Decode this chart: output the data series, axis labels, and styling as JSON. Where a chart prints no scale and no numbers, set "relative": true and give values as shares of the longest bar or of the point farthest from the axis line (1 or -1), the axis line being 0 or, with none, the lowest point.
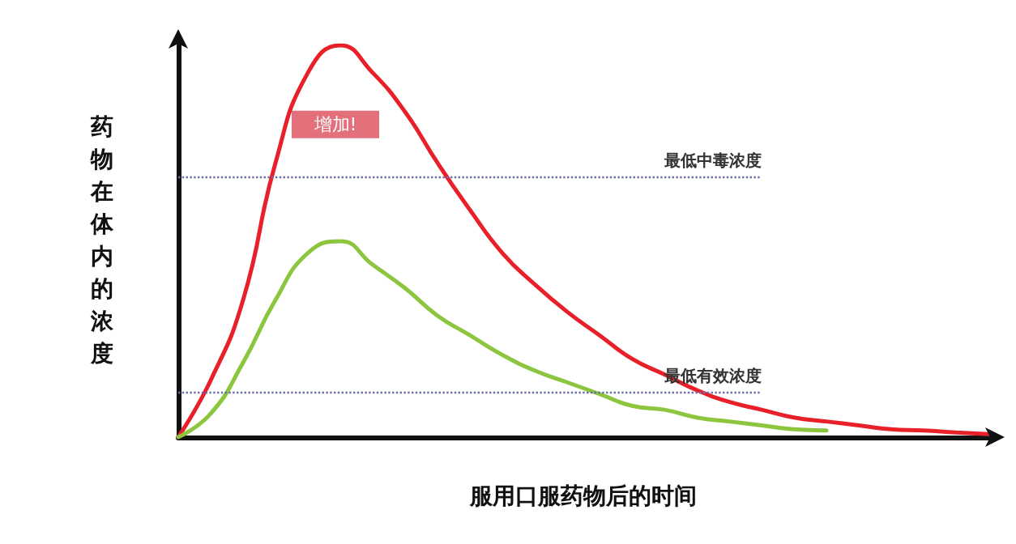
{
  "chart_data": {
    "type": "line",
    "relative": true,
    "xlabel": "服用口服药物后的时间",
    "ylabel": "药物在体内的浓度",
    "categories": [
      null,
      null,
      null,
      null,
      null,
      null,
      null,
      null,
      null,
      null,
      null,
      null,
      null,
      null,
      null,
      null,
      null,
      null,
      null,
      null,
      null,
      null,
      null,
      null,
      null,
      null
    ],
    "series": [
      {
        "color": "#e8202a",
        "values": [
          0,
          0.145,
          0.35,
          0.7,
          0.93,
          1,
          0.93,
          0.83,
          0.7,
          0.58,
          0.47,
          0.39,
          0.32,
          0.26,
          0.2,
          0.16,
          0.12,
          0.09,
          0.07,
          0.05,
          0.04,
          0.03,
          0.02,
          0.017,
          0.012,
          0.008
        ]
      },
      {
        "color": "#8cc63f",
        "values": [
          0,
          0.06,
          0.19,
          0.35,
          0.47,
          0.5,
          0.44,
          0.38,
          0.31,
          0.26,
          0.21,
          0.17,
          0.14,
          0.11,
          0.08,
          0.07,
          0.05,
          0.04,
          0.03,
          0.02,
          0.017,
          null,
          null,
          null,
          null,
          null
        ]
      }
    ],
    "ref_lines": [
      {
        "axis": "y",
        "value": 0.665,
        "label": "最低中毒浓度",
        "color": "#6b6fa8",
        "line_style": "dotted"
      },
      {
        "axis": "y",
        "value": 0.116,
        "label": "最低有效浓度",
        "color": "#6b6fa8",
        "line_style": "dotted"
      }
    ],
    "annotations": [
      "增加!"
    ],
    "marker": "none",
    "line_style": "solid"
  }
}
